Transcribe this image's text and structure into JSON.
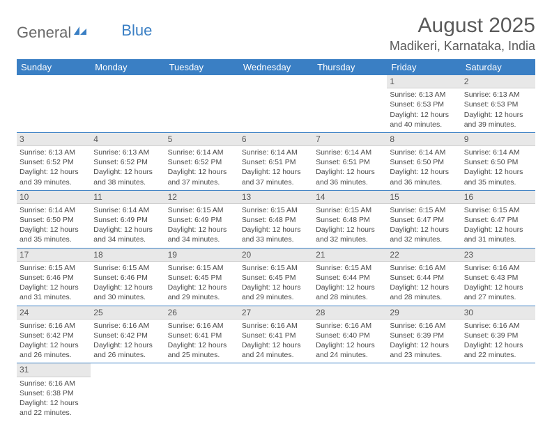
{
  "logo": {
    "text1": "General",
    "text2": "Blue"
  },
  "title": "August 2025",
  "location": "Madikeri, Karnataka, India",
  "colors": {
    "header_bg": "#3a7fc4",
    "header_text": "#ffffff",
    "daynum_bg": "#e8e8e8",
    "row_border": "#3a7fc4",
    "text": "#4a4a4a"
  },
  "weekdays": [
    "Sunday",
    "Monday",
    "Tuesday",
    "Wednesday",
    "Thursday",
    "Friday",
    "Saturday"
  ],
  "weeks": [
    [
      null,
      null,
      null,
      null,
      null,
      {
        "n": "1",
        "sr": "6:13 AM",
        "ss": "6:53 PM",
        "dh": "12",
        "dm": "40"
      },
      {
        "n": "2",
        "sr": "6:13 AM",
        "ss": "6:53 PM",
        "dh": "12",
        "dm": "39"
      }
    ],
    [
      {
        "n": "3",
        "sr": "6:13 AM",
        "ss": "6:52 PM",
        "dh": "12",
        "dm": "39"
      },
      {
        "n": "4",
        "sr": "6:13 AM",
        "ss": "6:52 PM",
        "dh": "12",
        "dm": "38"
      },
      {
        "n": "5",
        "sr": "6:14 AM",
        "ss": "6:52 PM",
        "dh": "12",
        "dm": "37"
      },
      {
        "n": "6",
        "sr": "6:14 AM",
        "ss": "6:51 PM",
        "dh": "12",
        "dm": "37"
      },
      {
        "n": "7",
        "sr": "6:14 AM",
        "ss": "6:51 PM",
        "dh": "12",
        "dm": "36"
      },
      {
        "n": "8",
        "sr": "6:14 AM",
        "ss": "6:50 PM",
        "dh": "12",
        "dm": "36"
      },
      {
        "n": "9",
        "sr": "6:14 AM",
        "ss": "6:50 PM",
        "dh": "12",
        "dm": "35"
      }
    ],
    [
      {
        "n": "10",
        "sr": "6:14 AM",
        "ss": "6:50 PM",
        "dh": "12",
        "dm": "35"
      },
      {
        "n": "11",
        "sr": "6:14 AM",
        "ss": "6:49 PM",
        "dh": "12",
        "dm": "34"
      },
      {
        "n": "12",
        "sr": "6:15 AM",
        "ss": "6:49 PM",
        "dh": "12",
        "dm": "34"
      },
      {
        "n": "13",
        "sr": "6:15 AM",
        "ss": "6:48 PM",
        "dh": "12",
        "dm": "33"
      },
      {
        "n": "14",
        "sr": "6:15 AM",
        "ss": "6:48 PM",
        "dh": "12",
        "dm": "32"
      },
      {
        "n": "15",
        "sr": "6:15 AM",
        "ss": "6:47 PM",
        "dh": "12",
        "dm": "32"
      },
      {
        "n": "16",
        "sr": "6:15 AM",
        "ss": "6:47 PM",
        "dh": "12",
        "dm": "31"
      }
    ],
    [
      {
        "n": "17",
        "sr": "6:15 AM",
        "ss": "6:46 PM",
        "dh": "12",
        "dm": "31"
      },
      {
        "n": "18",
        "sr": "6:15 AM",
        "ss": "6:46 PM",
        "dh": "12",
        "dm": "30"
      },
      {
        "n": "19",
        "sr": "6:15 AM",
        "ss": "6:45 PM",
        "dh": "12",
        "dm": "29"
      },
      {
        "n": "20",
        "sr": "6:15 AM",
        "ss": "6:45 PM",
        "dh": "12",
        "dm": "29"
      },
      {
        "n": "21",
        "sr": "6:15 AM",
        "ss": "6:44 PM",
        "dh": "12",
        "dm": "28"
      },
      {
        "n": "22",
        "sr": "6:16 AM",
        "ss": "6:44 PM",
        "dh": "12",
        "dm": "28"
      },
      {
        "n": "23",
        "sr": "6:16 AM",
        "ss": "6:43 PM",
        "dh": "12",
        "dm": "27"
      }
    ],
    [
      {
        "n": "24",
        "sr": "6:16 AM",
        "ss": "6:42 PM",
        "dh": "12",
        "dm": "26"
      },
      {
        "n": "25",
        "sr": "6:16 AM",
        "ss": "6:42 PM",
        "dh": "12",
        "dm": "26"
      },
      {
        "n": "26",
        "sr": "6:16 AM",
        "ss": "6:41 PM",
        "dh": "12",
        "dm": "25"
      },
      {
        "n": "27",
        "sr": "6:16 AM",
        "ss": "6:41 PM",
        "dh": "12",
        "dm": "24"
      },
      {
        "n": "28",
        "sr": "6:16 AM",
        "ss": "6:40 PM",
        "dh": "12",
        "dm": "24"
      },
      {
        "n": "29",
        "sr": "6:16 AM",
        "ss": "6:39 PM",
        "dh": "12",
        "dm": "23"
      },
      {
        "n": "30",
        "sr": "6:16 AM",
        "ss": "6:39 PM",
        "dh": "12",
        "dm": "22"
      }
    ],
    [
      {
        "n": "31",
        "sr": "6:16 AM",
        "ss": "6:38 PM",
        "dh": "12",
        "dm": "22"
      },
      null,
      null,
      null,
      null,
      null,
      null
    ]
  ],
  "labels": {
    "sunrise": "Sunrise:",
    "sunset": "Sunset:",
    "daylight_pre": "Daylight:",
    "hours": "hours",
    "and": "and",
    "minutes": "minutes."
  }
}
